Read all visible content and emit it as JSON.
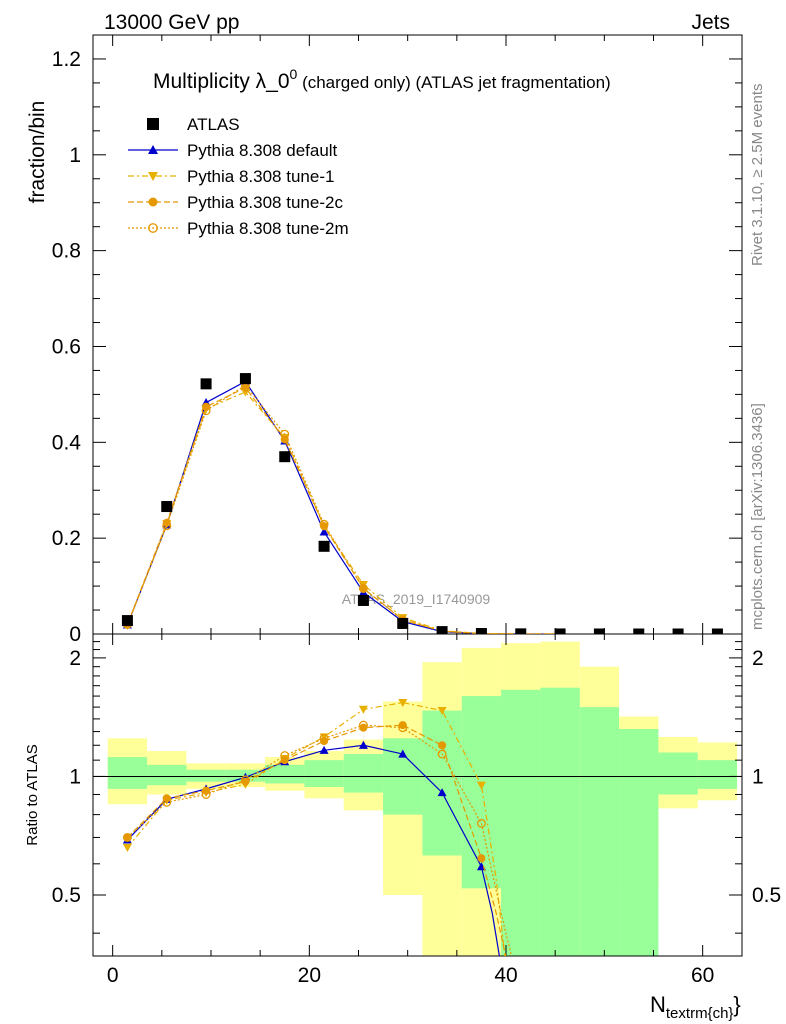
{
  "header": {
    "left": "13000 GeV pp",
    "right": "Jets"
  },
  "side": {
    "rivet": "Rivet 3.1.10, ≥ 2.5M events",
    "mcplots": "mcplots.cern.ch [arXiv:1306.3436]"
  },
  "main_plot": {
    "title_main": "Multiplicity λ_0",
    "title_sup": "0",
    "title_rest": " (charged only) (ATLAS jet fragmentation)",
    "ylabel": "fraction/bin",
    "watermark": "ATLAS_2019_I1740909"
  },
  "ratio_plot": {
    "ylabel": "Ratio to ATLAS"
  },
  "xlabel": {
    "main": "N",
    "sub": "textrm{ch}",
    "close": "}"
  },
  "legend": [
    {
      "label": "ATLAS",
      "color": "#000000",
      "marker": "square",
      "dash": ""
    },
    {
      "label": "Pythia 8.308 default",
      "color": "#0000cc",
      "marker": "triangle-up",
      "dash": ""
    },
    {
      "label": "Pythia 8.308 tune-1",
      "color": "#e8b000",
      "marker": "triangle-down",
      "dash": "6,3,2,3"
    },
    {
      "label": "Pythia 8.308 tune-2c",
      "color": "#e59800",
      "marker": "circle",
      "dash": "6,3"
    },
    {
      "label": "Pythia 8.308 tune-2m",
      "color": "#e59800",
      "marker": "circle-open",
      "dash": "2,2"
    }
  ],
  "chart_data": [
    {
      "type": "scatter",
      "xlim": [
        -2,
        64
      ],
      "ylim": [
        0,
        1.25
      ],
      "x_ticks": [
        0,
        20,
        40,
        60
      ],
      "y_ticks": [
        "0",
        "0.2",
        "0.4",
        "0.6",
        "0.8",
        "1",
        "1.2"
      ],
      "x": [
        1.5,
        5.5,
        9.5,
        13.5,
        17.5,
        21.5,
        25.5,
        29.5,
        33.5,
        37.5,
        41.5,
        45.5,
        49.5,
        53.5,
        57.5,
        61.5
      ],
      "series": [
        {
          "name": "ATLAS",
          "values": [
            0.028,
            0.266,
            0.522,
            0.533,
            0.37,
            0.183,
            0.07,
            0.022,
            0.005,
            0.001,
            0.0003,
            0.0001,
            0.0,
            0.0,
            0.0,
            0.0
          ]
        },
        {
          "name": "Pythia 8.308 default",
          "values": [
            0.019,
            0.228,
            0.483,
            0.527,
            0.403,
            0.213,
            0.087,
            0.026,
            0.005,
            0.0007,
            0.0001,
            0.0
          ]
        },
        {
          "name": "Pythia 8.308 tune-1",
          "values": [
            0.018,
            0.23,
            0.47,
            0.505,
            0.41,
            0.225,
            0.103,
            0.034,
            0.007,
            0.001,
            0.0002,
            0.0
          ]
        },
        {
          "name": "Pythia 8.308 tune-2c",
          "values": [
            0.02,
            0.232,
            0.474,
            0.514,
            0.406,
            0.225,
            0.095,
            0.03,
            0.006,
            0.0008,
            0.0001,
            0.0
          ]
        },
        {
          "name": "Pythia 8.308 tune-2m",
          "values": [
            0.02,
            0.226,
            0.466,
            0.519,
            0.417,
            0.229,
            0.095,
            0.029,
            0.006,
            0.0009,
            0.0001,
            0.0
          ]
        }
      ]
    },
    {
      "type": "line",
      "xlim": [
        -2,
        64
      ],
      "ylim": [
        0.35,
        2.3
      ],
      "x_ticks": [
        0,
        20,
        40,
        60
      ],
      "y_ticks": [
        "0.5",
        "1",
        "2"
      ],
      "reference_line": 1,
      "bin_edges": [
        -0.5,
        3.5,
        7.5,
        11.5,
        15.5,
        19.5,
        23.5,
        27.5,
        31.5,
        35.5,
        39.5,
        43.5,
        47.5,
        51.5,
        55.5,
        59.5,
        63.5
      ],
      "band_inner": [
        [
          0.93,
          1.12
        ],
        [
          0.95,
          1.07
        ],
        [
          0.97,
          1.04
        ],
        [
          0.97,
          1.04
        ],
        [
          0.96,
          1.07
        ],
        [
          0.94,
          1.1
        ],
        [
          0.91,
          1.14
        ],
        [
          0.8,
          1.25
        ],
        [
          0.63,
          1.47
        ],
        [
          0.52,
          1.6
        ],
        [
          0.32,
          1.66
        ],
        [
          0.32,
          1.68
        ],
        [
          0.32,
          1.5
        ],
        [
          0.32,
          1.32
        ],
        [
          0.9,
          1.15
        ],
        [
          0.93,
          1.1
        ]
      ],
      "band_outer": [
        [
          0.85,
          1.25
        ],
        [
          0.9,
          1.16
        ],
        [
          0.93,
          1.08
        ],
        [
          0.94,
          1.08
        ],
        [
          0.92,
          1.12
        ],
        [
          0.88,
          1.16
        ],
        [
          0.82,
          1.24
        ],
        [
          0.5,
          1.55
        ],
        [
          0.32,
          1.95
        ],
        [
          0.32,
          2.12
        ],
        [
          0.32,
          2.18
        ],
        [
          0.32,
          2.2
        ],
        [
          0.32,
          1.9
        ],
        [
          0.52,
          1.42
        ],
        [
          0.83,
          1.26
        ],
        [
          0.87,
          1.22
        ]
      ],
      "series": [
        {
          "name": "Pythia 8.308 default",
          "x": [
            1.5,
            5.5,
            9.5,
            13.5,
            17.5,
            21.5,
            25.5,
            29.5,
            33.5,
            37.5,
            38.6,
            39.5
          ],
          "values": [
            0.69,
            0.875,
            0.93,
            0.995,
            1.09,
            1.165,
            1.2,
            1.14,
            0.91,
            0.59,
            0.45,
            0.33
          ]
        },
        {
          "name": "Pythia 8.308 tune-1",
          "x": [
            1.5,
            5.5,
            9.5,
            13.5,
            17.5,
            21.5,
            25.5,
            29.5,
            33.5,
            37.5,
            39.0,
            40.0
          ],
          "values": [
            0.66,
            0.87,
            0.91,
            0.955,
            1.11,
            1.26,
            1.48,
            1.54,
            1.47,
            0.95,
            0.55,
            0.33
          ]
        },
        {
          "name": "Pythia 8.308 tune-2c",
          "x": [
            1.5,
            5.5,
            9.5,
            13.5,
            17.5,
            21.5,
            25.5,
            29.5,
            33.5,
            37.5,
            39.0,
            40.2
          ],
          "values": [
            0.7,
            0.88,
            0.92,
            0.97,
            1.1,
            1.23,
            1.33,
            1.35,
            1.2,
            0.62,
            0.45,
            0.33
          ]
        },
        {
          "name": "Pythia 8.308 tune-2m",
          "x": [
            1.5,
            5.5,
            9.5,
            13.5,
            17.5,
            21.5,
            25.5,
            29.5,
            33.5,
            37.5,
            39.5,
            40.8
          ],
          "values": [
            0.7,
            0.86,
            0.9,
            0.98,
            1.13,
            1.25,
            1.35,
            1.33,
            1.14,
            0.76,
            0.45,
            0.33
          ]
        }
      ]
    }
  ]
}
